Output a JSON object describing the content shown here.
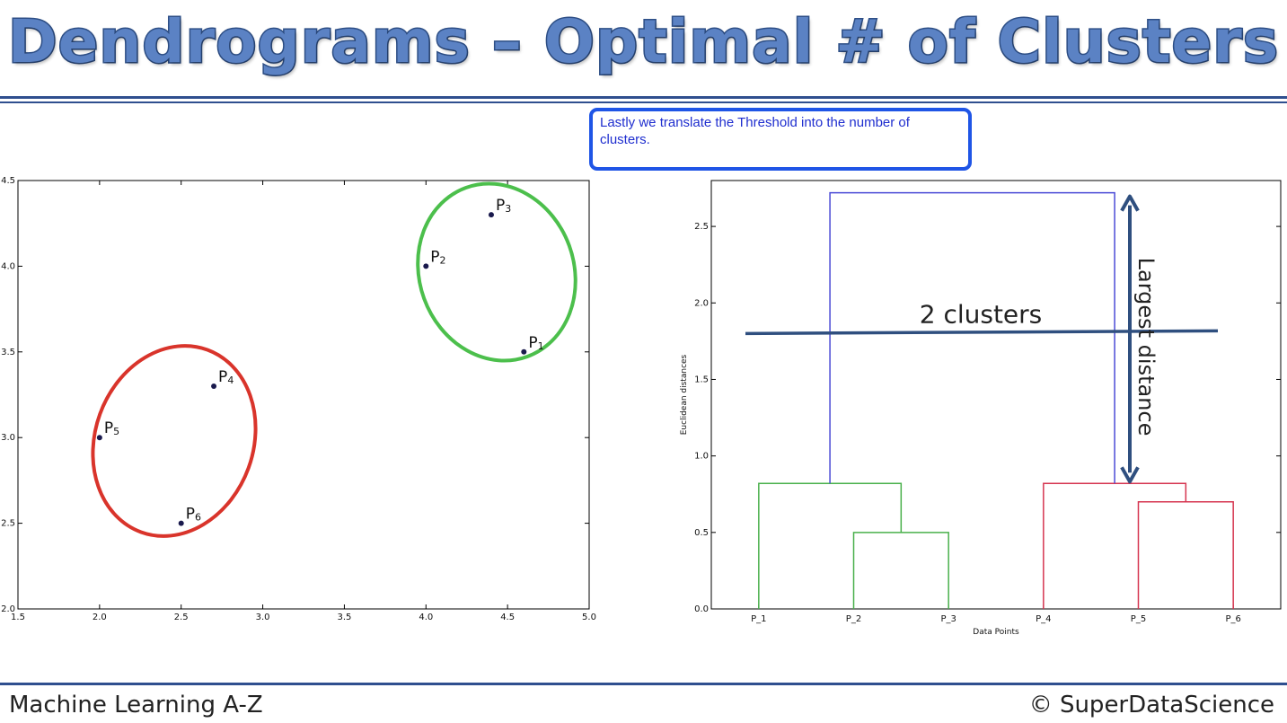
{
  "slide": {
    "title": "Dendrograms – Optimal # of Clusters",
    "callout": "Lastly we translate the Threshold into the number of clusters.",
    "footer_left": "Machine Learning A-Z",
    "footer_right": "© SuperDataScience"
  },
  "colors": {
    "title": "#5b82c4",
    "rule": "#2f4f8f",
    "green_cluster": "#4cbf4c",
    "red_cluster": "#d9342b",
    "top_link": "#4b4bd6",
    "threshold": "#2f4f7f",
    "point": "#1a1a4d"
  },
  "chart_data": [
    {
      "type": "scatter",
      "xlim": [
        1.5,
        5.0
      ],
      "ylim": [
        2.0,
        4.5
      ],
      "xticks": [
        "1.5",
        "2.0",
        "2.5",
        "3.0",
        "3.5",
        "4.0",
        "4.5",
        "5.0"
      ],
      "yticks": [
        "2.0",
        "2.5",
        "3.0",
        "3.5",
        "4.0",
        "4.5"
      ],
      "points": [
        {
          "label": "P",
          "sub": "1",
          "x": 4.6,
          "y": 3.5
        },
        {
          "label": "P",
          "sub": "2",
          "x": 4.0,
          "y": 4.0
        },
        {
          "label": "P",
          "sub": "3",
          "x": 4.4,
          "y": 4.3
        },
        {
          "label": "P",
          "sub": "4",
          "x": 2.7,
          "y": 3.3
        },
        {
          "label": "P",
          "sub": "5",
          "x": 2.0,
          "y": 3.0
        },
        {
          "label": "P",
          "sub": "6",
          "x": 2.5,
          "y": 2.5
        }
      ],
      "clusters": [
        {
          "color": "green",
          "members": [
            "P1",
            "P2",
            "P3"
          ]
        },
        {
          "color": "red",
          "members": [
            "P4",
            "P5",
            "P6"
          ]
        }
      ]
    },
    {
      "type": "dendrogram",
      "xlabel": "Data Points",
      "ylabel": "Euclidean distances",
      "leaves": [
        "P_1",
        "P_2",
        "P_3",
        "P_4",
        "P_5",
        "P_6"
      ],
      "ylim": [
        0,
        2.8
      ],
      "yticks": [
        "0.0",
        "0.5",
        "1.0",
        "1.5",
        "2.0",
        "2.5"
      ],
      "links": [
        {
          "left": [
            1,
            2
          ],
          "height": 0.5,
          "color": "green"
        },
        {
          "left": [
            0,
            1.5
          ],
          "height": 0.82,
          "color": "green"
        },
        {
          "left": [
            4,
            5
          ],
          "height": 0.7,
          "color": "red"
        },
        {
          "left": [
            3,
            4.5
          ],
          "height": 0.82,
          "color": "red"
        },
        {
          "left": [
            0.75,
            3.75
          ],
          "height": 2.72,
          "color": "blue"
        }
      ],
      "threshold": {
        "y": 1.8,
        "label": "2 clusters"
      },
      "annotation": "Largest distance"
    }
  ]
}
